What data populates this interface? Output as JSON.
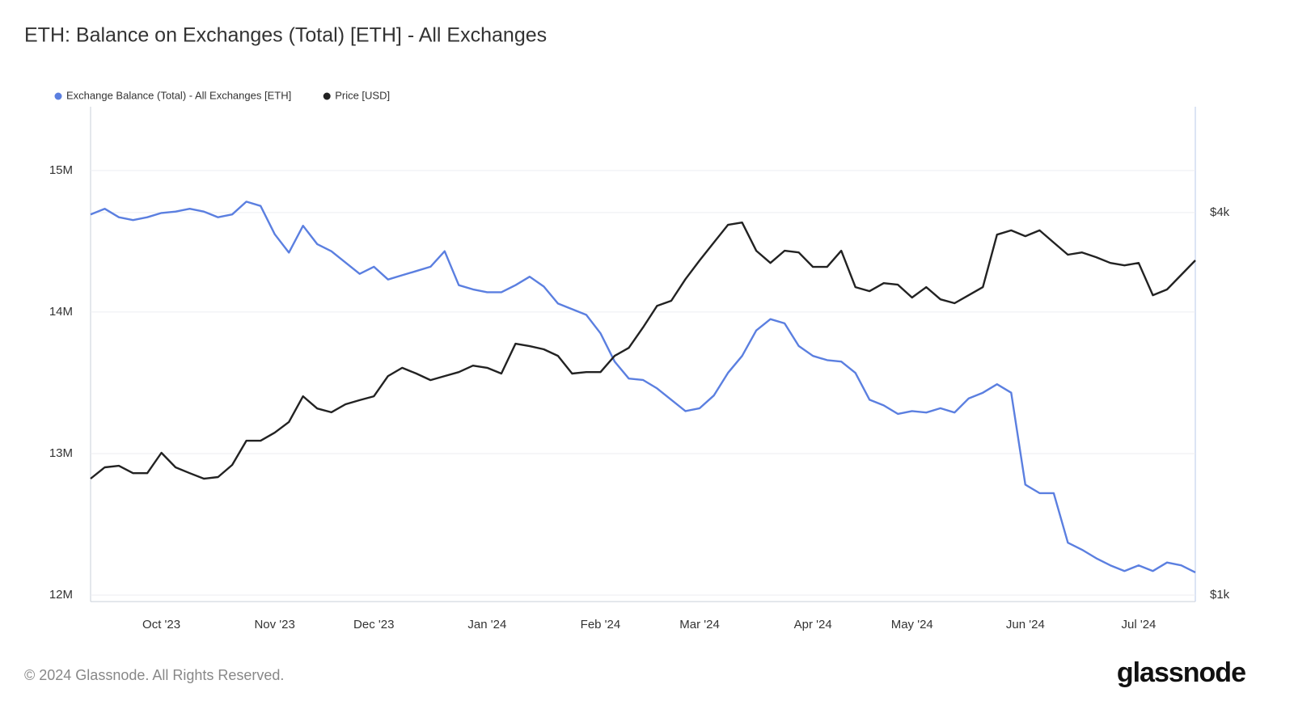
{
  "chart_data": {
    "type": "line",
    "title": "ETH: Balance on Exchanges (Total) [ETH] - All Exchanges",
    "categories": [
      null,
      null,
      null,
      null,
      null,
      "Oct '23",
      null,
      null,
      null,
      null,
      null,
      null,
      null,
      "Nov '23",
      null,
      null,
      null,
      null,
      null,
      null,
      "Dec '23",
      null,
      null,
      null,
      null,
      null,
      null,
      null,
      "Jan '24",
      null,
      null,
      null,
      null,
      null,
      null,
      null,
      "Feb '24",
      null,
      null,
      null,
      null,
      null,
      null,
      "Mar '24",
      null,
      null,
      null,
      null,
      null,
      null,
      null,
      "Apr '24",
      null,
      null,
      null,
      null,
      null,
      null,
      "May '24",
      null,
      null,
      null,
      null,
      null,
      null,
      null,
      "Jun '24",
      null,
      null,
      null,
      null,
      null,
      null,
      null,
      "Jul '24",
      null,
      null,
      null,
      null
    ],
    "series": [
      {
        "name": "Exchange Balance (Total) - All Exchanges [ETH]",
        "color": "#5b7fe0",
        "axis": "y",
        "values": [
          14690000,
          14730000,
          14670000,
          14650000,
          14670000,
          14700000,
          14710000,
          14730000,
          14710000,
          14670000,
          14690000,
          14780000,
          14750000,
          14550000,
          14420000,
          14610000,
          14480000,
          14430000,
          14350000,
          14270000,
          14320000,
          14230000,
          14260000,
          14290000,
          14320000,
          14430000,
          14190000,
          14160000,
          14140000,
          14140000,
          14190000,
          14250000,
          14180000,
          14060000,
          14020000,
          13980000,
          13850000,
          13650000,
          13530000,
          13520000,
          13460000,
          13380000,
          13300000,
          13320000,
          13410000,
          13570000,
          13690000,
          13870000,
          13950000,
          13920000,
          13760000,
          13690000,
          13660000,
          13650000,
          13570000,
          13380000,
          13340000,
          13280000,
          13300000,
          13290000,
          13320000,
          13290000,
          13390000,
          13430000,
          13490000,
          13430000,
          12780000,
          12720000,
          12720000,
          12370000,
          12320000,
          12260000,
          12210000,
          12170000,
          12210000,
          12170000,
          12230000,
          12210000,
          12160000
        ]
      },
      {
        "name": "Price [USD]",
        "color": "#222222",
        "axis": "y2",
        "values": [
          1525,
          1589,
          1598,
          1556,
          1556,
          1675,
          1589,
          1556,
          1525,
          1534,
          1603,
          1750,
          1750,
          1802,
          1873,
          2056,
          1967,
          1940,
          1997,
          2027,
          2056,
          2212,
          2279,
          2232,
          2180,
          2212,
          2244,
          2297,
          2279,
          2232,
          2487,
          2465,
          2437,
          2380,
          2232,
          2244,
          2244,
          2380,
          2450,
          2637,
          2853,
          2906,
          3142,
          3364,
          3588,
          3826,
          3859,
          3483,
          3333,
          3483,
          3462,
          3285,
          3285,
          3483,
          3053,
          3009,
          3097,
          3080,
          2940,
          3053,
          2921,
          2880,
          2965,
          3053,
          3693,
          3750,
          3672,
          3750,
          3588,
          3434,
          3462,
          3403,
          3333,
          3304,
          3333,
          2965,
          3027,
          3191,
          3364
        ]
      }
    ],
    "ylim": [
      11954000,
      15451000
    ],
    "yticks": [
      {
        "value": 12000000,
        "label": "12M"
      },
      {
        "value": 13000000,
        "label": "13M"
      },
      {
        "value": 14000000,
        "label": "14M"
      },
      {
        "value": 15000000,
        "label": "15M"
      }
    ],
    "y2lim": [
      977,
      5870
    ],
    "y2ticks": [
      {
        "value": 1000,
        "label": "$1k"
      },
      {
        "value": 4000,
        "label": "$4k"
      }
    ],
    "y2scale": "log",
    "grid": true
  },
  "footer": {
    "copyright": "© 2024 Glassnode. All Rights Reserved.",
    "logo": "glassnode"
  }
}
